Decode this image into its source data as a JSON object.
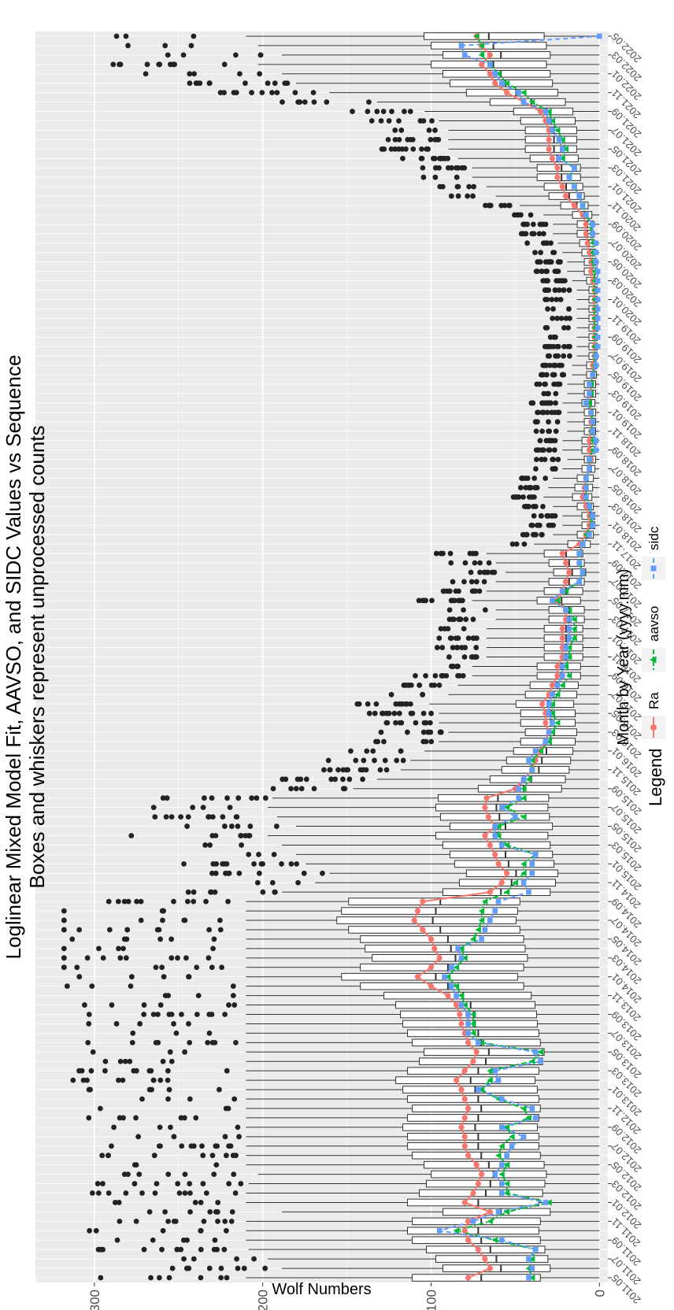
{
  "chart_data": {
    "type": "box",
    "title": "Loglinear Mixed Model Fit, AAVSO, and SIDC Values vs Sequence",
    "subtitle": "Boxes and whiskers represent unprocessed counts",
    "xlabel": "Month by Year (yyyy.mm)",
    "ylabel": "Wolf Numbers",
    "ylim": [
      -5,
      335
    ],
    "yticks": [
      0,
      100,
      200,
      300
    ],
    "x_tick_labels": [
      "2011.05",
      "2011.07",
      "2011.09",
      "2011.11",
      "2012.01",
      "2012.03",
      "2012.05",
      "2012.07",
      "2012.09",
      "2012.11",
      "2013.01",
      "2013.03",
      "2013.05",
      "2013.07",
      "2013.09",
      "2013.11",
      "2014.01",
      "2014.03",
      "2014.05",
      "2014.07",
      "2014.09",
      "2014.11",
      "2015.01",
      "2015.03",
      "2015.05",
      "2015.07",
      "2015.09",
      "2015.11",
      "2016.01",
      "2016.03",
      "2016.05",
      "2016.07",
      "2016.09",
      "2016.11",
      "2017.01",
      "2017.03",
      "2017.05",
      "2017.07",
      "2017.09",
      "2017.11",
      "2018.01",
      "2018.03",
      "2018.05",
      "2018.07",
      "2018.09",
      "2018.11",
      "2019.01",
      "2019.03",
      "2019.05",
      "2019.07",
      "2019.09",
      "2019.11",
      "2020.01",
      "2020.03",
      "2020.05",
      "2020.07",
      "2020.09",
      "2020.11",
      "2021.01",
      "2021.03",
      "2021.05",
      "2021.07",
      "2021.09",
      "2021.11",
      "2022.01",
      "2022.03",
      "2022.05"
    ],
    "months": [
      "2011.05",
      "2011.06",
      "2011.07",
      "2011.08",
      "2011.09",
      "2011.10",
      "2011.11",
      "2011.12",
      "2012.01",
      "2012.02",
      "2012.03",
      "2012.04",
      "2012.05",
      "2012.06",
      "2012.07",
      "2012.08",
      "2012.09",
      "2012.10",
      "2012.11",
      "2012.12",
      "2013.01",
      "2013.02",
      "2013.03",
      "2013.04",
      "2013.05",
      "2013.06",
      "2013.07",
      "2013.08",
      "2013.09",
      "2013.10",
      "2013.11",
      "2013.12",
      "2014.01",
      "2014.02",
      "2014.03",
      "2014.04",
      "2014.05",
      "2014.06",
      "2014.07",
      "2014.08",
      "2014.09",
      "2014.10",
      "2014.11",
      "2014.12",
      "2015.01",
      "2015.02",
      "2015.03",
      "2015.04",
      "2015.05",
      "2015.06",
      "2015.07",
      "2015.08",
      "2015.09",
      "2015.10",
      "2015.11",
      "2015.12",
      "2016.01",
      "2016.02",
      "2016.03",
      "2016.04",
      "2016.05",
      "2016.06",
      "2016.07",
      "2016.08",
      "2016.09",
      "2016.10",
      "2016.11",
      "2016.12",
      "2017.01",
      "2017.02",
      "2017.03",
      "2017.04",
      "2017.05",
      "2017.06",
      "2017.07",
      "2017.08",
      "2017.09",
      "2017.10",
      "2017.11",
      "2017.12",
      "2018.01",
      "2018.02",
      "2018.03",
      "2018.04",
      "2018.05",
      "2018.06",
      "2018.07",
      "2018.08",
      "2018.09",
      "2018.10",
      "2018.11",
      "2018.12",
      "2019.01",
      "2019.02",
      "2019.03",
      "2019.04",
      "2019.05",
      "2019.06",
      "2019.07",
      "2019.08",
      "2019.09",
      "2019.10",
      "2019.11",
      "2019.12",
      "2020.01",
      "2020.02",
      "2020.03",
      "2020.04",
      "2020.05",
      "2020.06",
      "2020.07",
      "2020.08",
      "2020.09",
      "2020.10",
      "2020.11",
      "2020.12",
      "2021.01",
      "2021.02",
      "2021.03",
      "2021.04",
      "2021.05",
      "2021.06",
      "2021.07",
      "2021.08",
      "2021.09",
      "2021.10",
      "2021.11",
      "2021.12",
      "2022.01",
      "2022.02",
      "2022.03",
      "2022.04",
      "2022.05"
    ],
    "series": [
      {
        "name": "Ra",
        "color": "#F8766D",
        "marker": "circle",
        "linestyle": "solid",
        "values": [
          78,
          65,
          68,
          72,
          78,
          80,
          78,
          65,
          80,
          75,
          72,
          70,
          73,
          78,
          80,
          80,
          82,
          80,
          78,
          80,
          82,
          85,
          80,
          75,
          73,
          78,
          80,
          82,
          83,
          85,
          90,
          100,
          108,
          100,
          95,
          98,
          100,
          105,
          110,
          108,
          105,
          65,
          58,
          55,
          60,
          62,
          65,
          68,
          62,
          66,
          68,
          67,
          50,
          45,
          40,
          38,
          35,
          32,
          30,
          32,
          32,
          34,
          30,
          28,
          25,
          25,
          22,
          22,
          22,
          22,
          20,
          20,
          25,
          22,
          20,
          18,
          20,
          22,
          12,
          8,
          6,
          6,
          8,
          10,
          9,
          8,
          6,
          5,
          6,
          6,
          5,
          5,
          5,
          6,
          5,
          5,
          4,
          4,
          3,
          3,
          3,
          3,
          3,
          3,
          3,
          3,
          4,
          5,
          5,
          6,
          7,
          8,
          8,
          10,
          15,
          20,
          22,
          25,
          25,
          28,
          30,
          30,
          30,
          32,
          35,
          45,
          55,
          62,
          65,
          70,
          65,
          70,
          73
        ]
      },
      {
        "name": "aavso",
        "color": "#00BA38",
        "marker": "triangle",
        "linestyle": "dotdash",
        "values": [
          40,
          42,
          40,
          38,
          62,
          85,
          65,
          55,
          30,
          55,
          55,
          58,
          55,
          60,
          58,
          52,
          55,
          42,
          45,
          60,
          70,
          65,
          65,
          40,
          35,
          70,
          75,
          75,
          75,
          80,
          82,
          85,
          90,
          85,
          80,
          82,
          75,
          72,
          70,
          70,
          68,
          55,
          50,
          45,
          45,
          38,
          55,
          60,
          60,
          45,
          55,
          45,
          45,
          42,
          40,
          40,
          35,
          30,
          28,
          25,
          28,
          28,
          25,
          22,
          18,
          20,
          18,
          18,
          15,
          15,
          15,
          18,
          25,
          20,
          12,
          10,
          12,
          12,
          10,
          8,
          5,
          5,
          6,
          8,
          8,
          8,
          6,
          6,
          4,
          4,
          5,
          4,
          5,
          6,
          5,
          5,
          4,
          3,
          3,
          3,
          3,
          3,
          3,
          3,
          3,
          3,
          3,
          3,
          4,
          4,
          4,
          5,
          5,
          8,
          10,
          12,
          15,
          18,
          15,
          22,
          20,
          22,
          25,
          28,
          30,
          40,
          45,
          55,
          60,
          65,
          70,
          70,
          73
        ]
      },
      {
        "name": "sidc",
        "color": "#619CFF",
        "marker": "square",
        "linestyle": "dashed",
        "values": [
          42,
          40,
          42,
          38,
          58,
          95,
          75,
          60,
          32,
          58,
          58,
          62,
          58,
          55,
          52,
          45,
          58,
          38,
          40,
          58,
          72,
          60,
          62,
          35,
          38,
          72,
          78,
          78,
          78,
          82,
          85,
          88,
          92,
          88,
          82,
          84,
          70,
          68,
          65,
          62,
          60,
          42,
          45,
          40,
          40,
          38,
          58,
          62,
          62,
          50,
          58,
          48,
          48,
          45,
          40,
          42,
          38,
          32,
          30,
          28,
          30,
          30,
          28,
          25,
          22,
          22,
          20,
          20,
          18,
          18,
          18,
          20,
          28,
          22,
          12,
          10,
          12,
          12,
          10,
          6,
          4,
          4,
          6,
          8,
          8,
          8,
          6,
          6,
          2,
          2,
          4,
          4,
          5,
          8,
          6,
          6,
          4,
          2,
          2,
          1,
          1,
          1,
          1,
          1,
          1,
          1,
          1,
          1,
          2,
          2,
          2,
          4,
          4,
          8,
          10,
          12,
          15,
          18,
          15,
          24,
          22,
          24,
          28,
          30,
          32,
          45,
          48,
          58,
          62,
          65,
          80,
          82,
          0
        ]
      }
    ],
    "boxes": {
      "upper_whisker_max": 210,
      "outlier_max": 318
    },
    "legend": {
      "title": "Legend",
      "placement": "bottom",
      "entries": [
        "Ra",
        "aavso",
        "sidc"
      ]
    },
    "grid": true,
    "orientation": "rotated-90"
  }
}
